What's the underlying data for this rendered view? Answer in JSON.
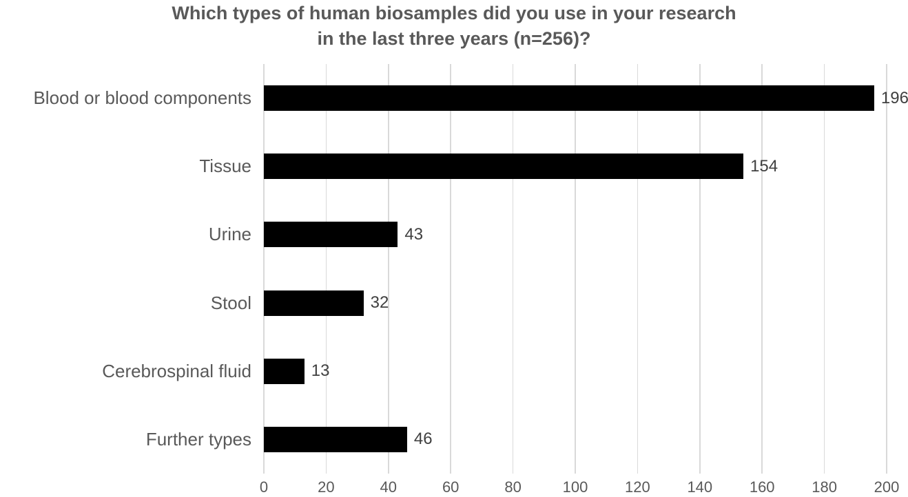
{
  "title": {
    "line1": "Which types of human biosamples did you use in your research",
    "line2": "in the last three years (n=256)?"
  },
  "chart_data": {
    "type": "bar",
    "orientation": "horizontal",
    "title": "Which types of human biosamples did you use in your research in the last three years (n=256)?",
    "categories": [
      "Blood or blood components",
      "Tissue",
      "Urine",
      "Stool",
      "Cerebrospinal fluid",
      "Further types"
    ],
    "values": [
      196,
      154,
      43,
      32,
      13,
      46
    ],
    "xlabel": "",
    "ylabel": "",
    "xlim": [
      0,
      200
    ],
    "xticks": [
      0,
      20,
      40,
      60,
      80,
      100,
      120,
      140,
      160,
      180,
      200
    ],
    "grid": true,
    "legend": false,
    "data_labels": true,
    "colors": {
      "bar": "#000000",
      "grid": "#d9d9d9",
      "title": "#595959",
      "category_label": "#595959",
      "value_label": "#404040",
      "tick_label": "#595959",
      "background": "#ffffff"
    }
  }
}
